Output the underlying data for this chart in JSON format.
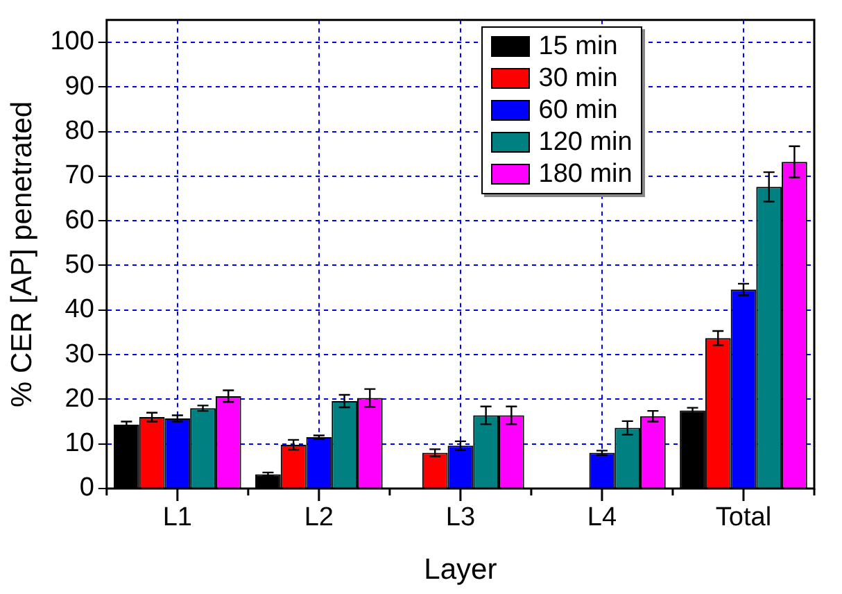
{
  "chart_data": {
    "type": "bar",
    "xlabel": "Layer",
    "ylabel": "% CER [AP] penetrated",
    "categories": [
      "L1",
      "L2",
      "L3",
      "L4",
      "Total"
    ],
    "series": [
      {
        "name": "15 min",
        "color": "#000000",
        "values": [
          14.3,
          3.2,
          null,
          null,
          17.5
        ],
        "errors": [
          0.7,
          0.4,
          null,
          null,
          0.6
        ]
      },
      {
        "name": "30 min",
        "color": "#ff0000",
        "values": [
          16,
          9.8,
          8,
          null,
          33.7
        ],
        "errors": [
          1,
          1.1,
          0.8,
          null,
          1.6
        ]
      },
      {
        "name": "60 min",
        "color": "#0000ff",
        "values": [
          15.7,
          11.5,
          9.6,
          8,
          44.6
        ],
        "errors": [
          0.7,
          0.4,
          1,
          0.5,
          1.3
        ]
      },
      {
        "name": "120 min",
        "color": "#008080",
        "values": [
          18,
          19.6,
          16.4,
          13.6,
          67.6
        ],
        "errors": [
          0.6,
          1.4,
          2,
          1.5,
          3.3
        ]
      },
      {
        "name": "180 min",
        "color": "#ff00ff",
        "values": [
          20.7,
          20.3,
          16.4,
          16.2,
          73.2
        ],
        "errors": [
          1.3,
          2,
          2,
          1.2,
          3.5
        ]
      }
    ],
    "ylim": [
      0,
      105
    ],
    "yticks": [
      0,
      10,
      20,
      30,
      40,
      50,
      60,
      70,
      80,
      90,
      100
    ],
    "grid": true,
    "legend": "top right"
  }
}
